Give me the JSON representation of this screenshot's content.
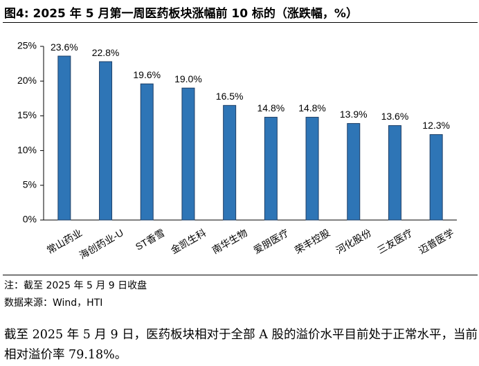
{
  "chart_data": {
    "type": "bar",
    "title": "图4:  2025 年 5 月第一周医药板块涨幅前 10 标的（涨跌幅，%）",
    "categories": [
      "常山药业",
      "海创药业-U",
      "ST香雪",
      "金凯生科",
      "南华生物",
      "爱朋医疗",
      "荣丰控股",
      "河化股份",
      "三友医疗",
      "迈普医学"
    ],
    "values": [
      23.6,
      22.8,
      19.6,
      19.0,
      16.5,
      14.8,
      14.8,
      13.9,
      13.6,
      12.3
    ],
    "value_labels": [
      "23.6%",
      "22.8%",
      "19.6%",
      "19.0%",
      "16.5%",
      "14.8%",
      "14.8%",
      "13.9%",
      "13.6%",
      "12.3%"
    ],
    "color": "#2e75b6",
    "ylim": [
      0,
      25
    ],
    "yticks": [
      {
        "value": 0,
        "label": "0%"
      },
      {
        "value": 5,
        "label": "5%"
      },
      {
        "value": 10,
        "label": "10%"
      },
      {
        "value": 15,
        "label": "15%"
      },
      {
        "value": 20,
        "label": "20%"
      },
      {
        "value": 25,
        "label": "25%"
      }
    ],
    "grid": false
  },
  "footer": {
    "note": "注：截至 2025 年 5 月 9 日收盘",
    "source": "数据来源：Wind，HTI"
  },
  "body": "截至 2025 年 5 月 9 日，医药板块相对于全部 A 股的溢价水平目前处于正常水平，当前相对溢价率 79.18%。"
}
